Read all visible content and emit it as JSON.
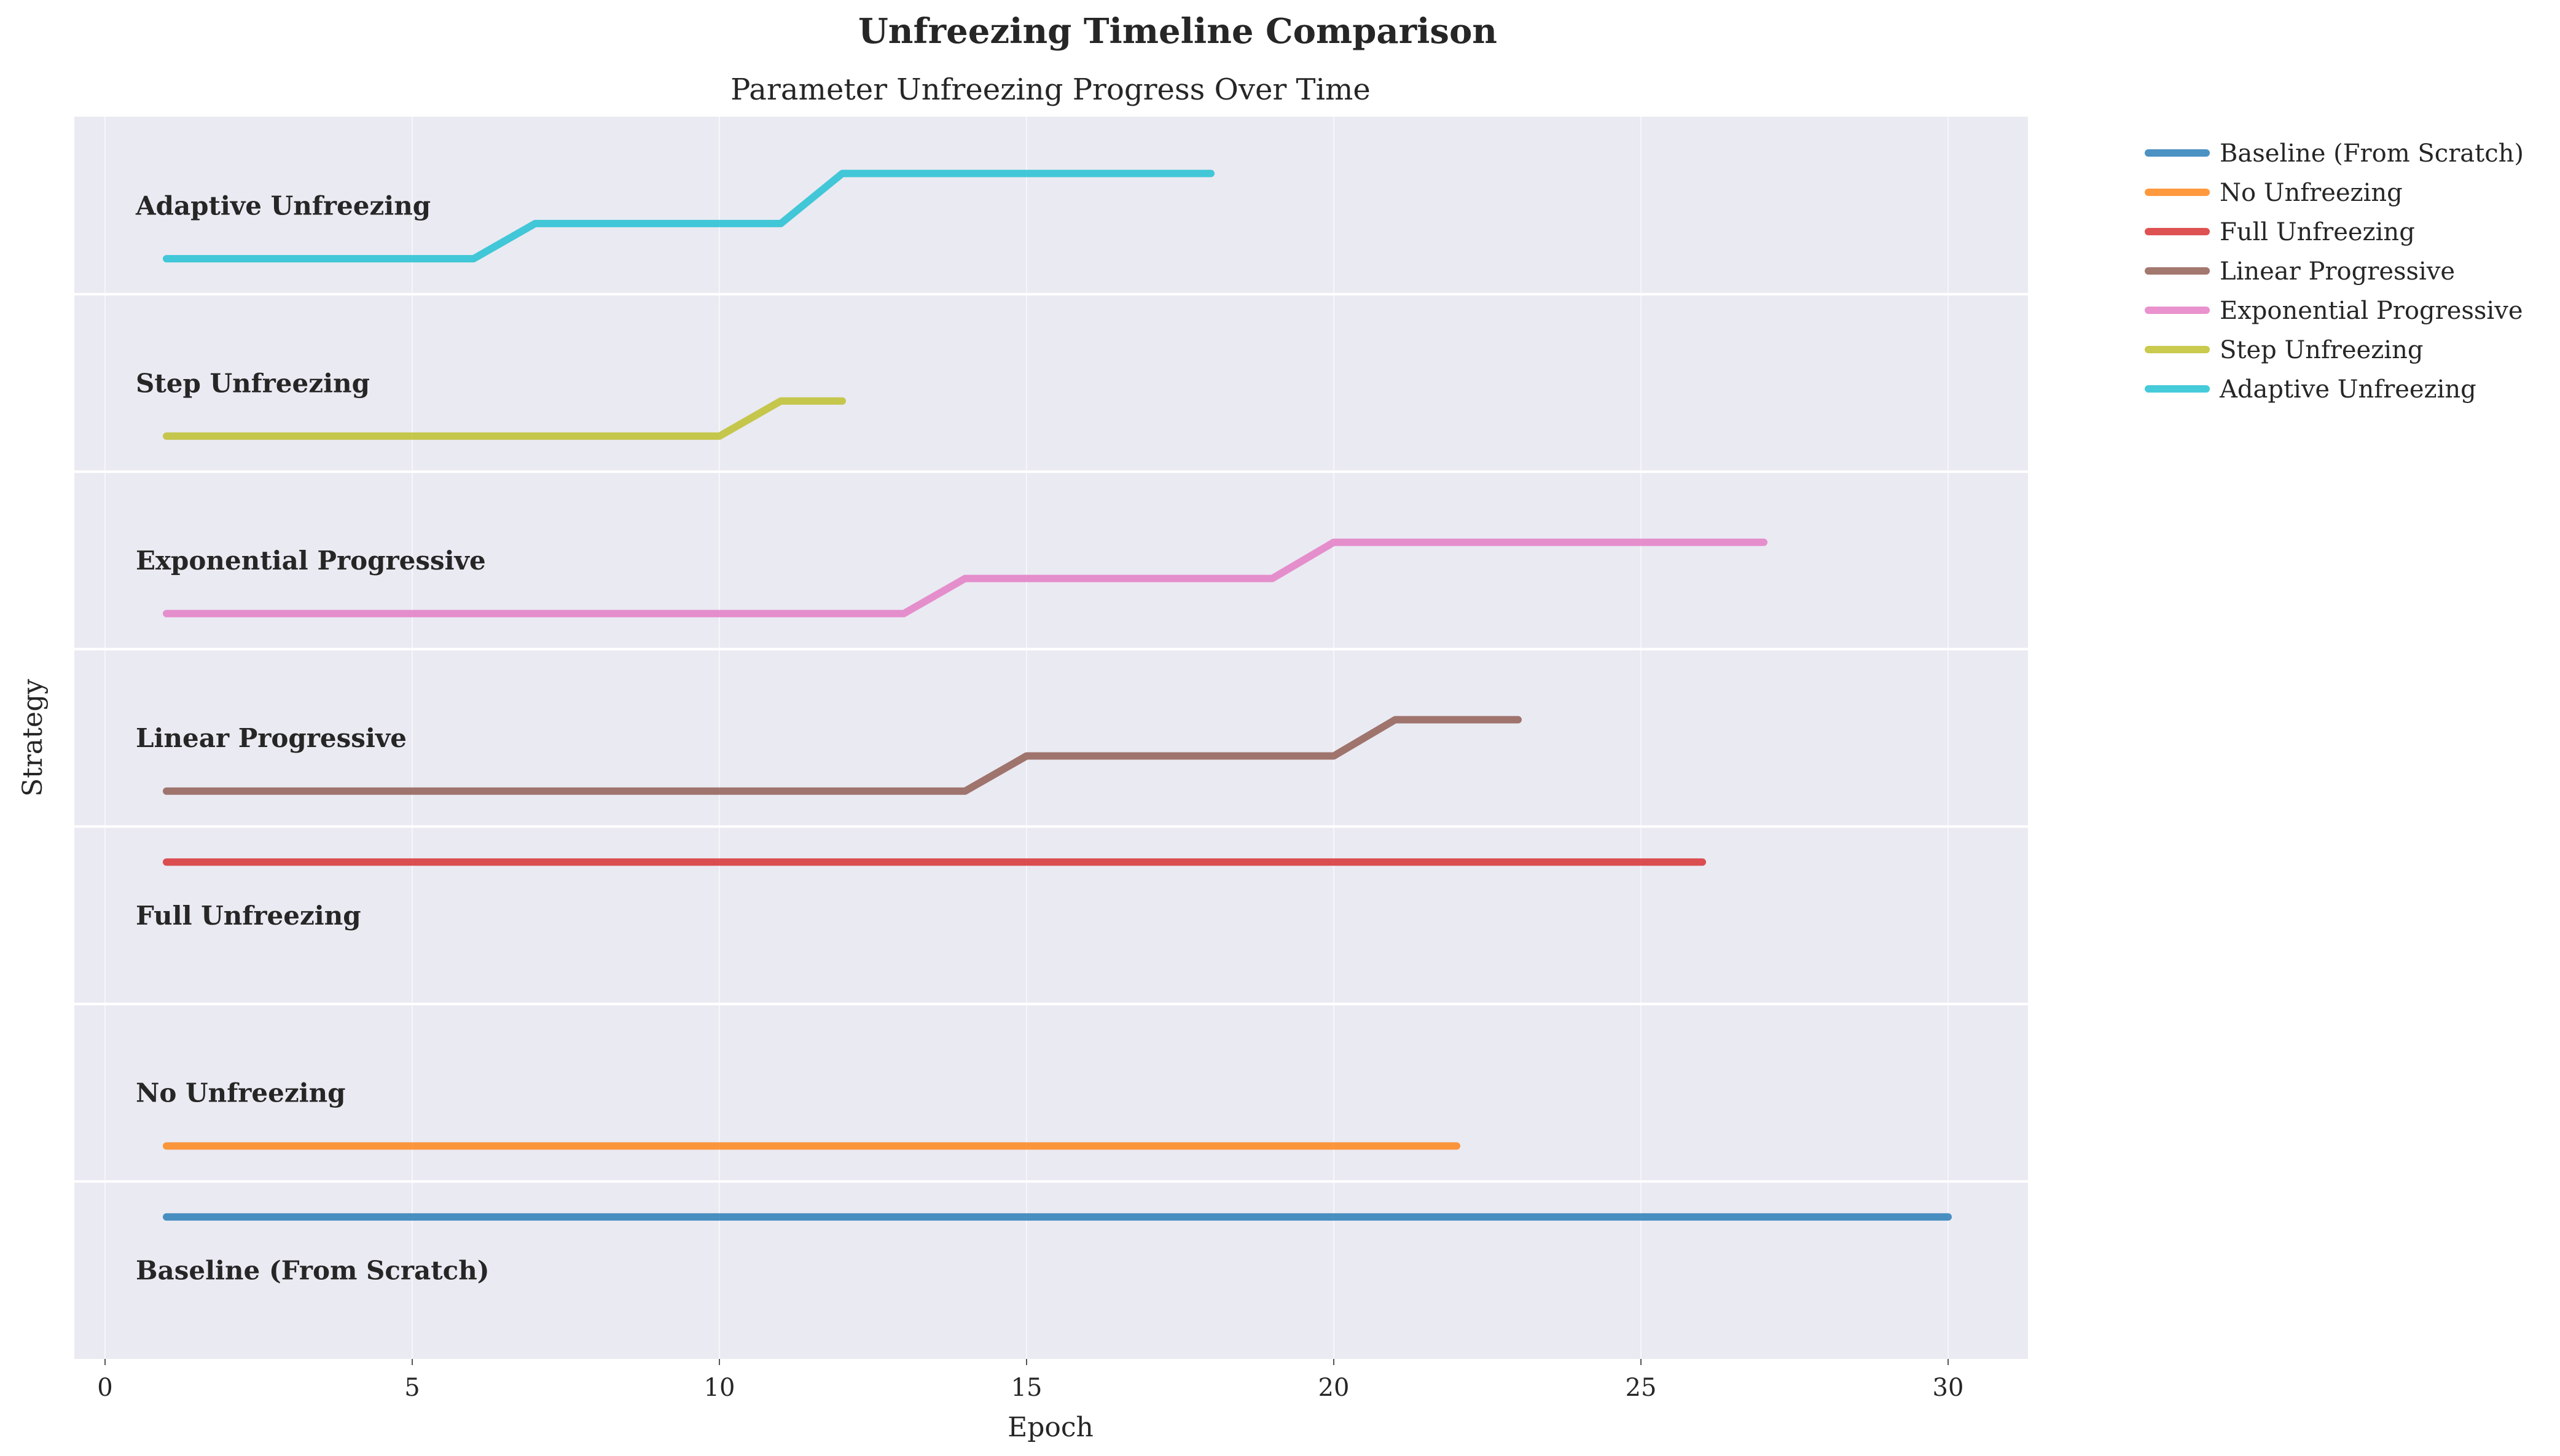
{
  "figure": {
    "suptitle": "Unfreezing Timeline Comparison"
  },
  "chart_data": {
    "type": "line",
    "title": "Parameter Unfreezing Progress Over Time",
    "xlabel": "Epoch",
    "ylabel": "Strategy",
    "xlim": [
      -0.5,
      31.3
    ],
    "xticks": [
      0,
      5,
      10,
      15,
      20,
      25,
      30
    ],
    "grid": true,
    "legend_position": "outside-right-top",
    "lanes": [
      "Baseline (From Scratch)",
      "No Unfreezing",
      "Full Unfreezing",
      "Linear Progressive",
      "Exponential Progressive",
      "Step Unfreezing",
      "Adaptive Unfreezing"
    ],
    "series": [
      {
        "name": "Baseline (From Scratch)",
        "color": "#1f77b4",
        "x": [
          1,
          30
        ],
        "y": [
          1.0,
          1.0
        ]
      },
      {
        "name": "No Unfreezing",
        "color": "#ff7f0e",
        "x": [
          1,
          22
        ],
        "y": [
          0.0,
          0.0
        ]
      },
      {
        "name": "Full Unfreezing",
        "color": "#d62728",
        "x": [
          1,
          26
        ],
        "y": [
          1.0,
          1.0
        ]
      },
      {
        "name": "Linear Progressive",
        "color": "#8c564b",
        "x": [
          1,
          14,
          15,
          20,
          21,
          23
        ],
        "y": [
          0.0,
          0.0,
          0.33,
          0.33,
          0.67,
          0.67
        ]
      },
      {
        "name": "Exponential Progressive",
        "color": "#e377c2",
        "x": [
          1,
          13,
          14,
          19,
          20,
          27
        ],
        "y": [
          0.0,
          0.0,
          0.33,
          0.33,
          0.67,
          0.67
        ]
      },
      {
        "name": "Step Unfreezing",
        "color": "#bcbd22",
        "x": [
          1,
          10,
          11,
          12
        ],
        "y": [
          0.0,
          0.0,
          0.33,
          0.33
        ]
      },
      {
        "name": "Adaptive Unfreezing",
        "color": "#17becf",
        "x": [
          1,
          6,
          7,
          11,
          12,
          18
        ],
        "y": [
          0.0,
          0.0,
          0.33,
          0.33,
          0.8,
          0.8
        ]
      }
    ]
  }
}
